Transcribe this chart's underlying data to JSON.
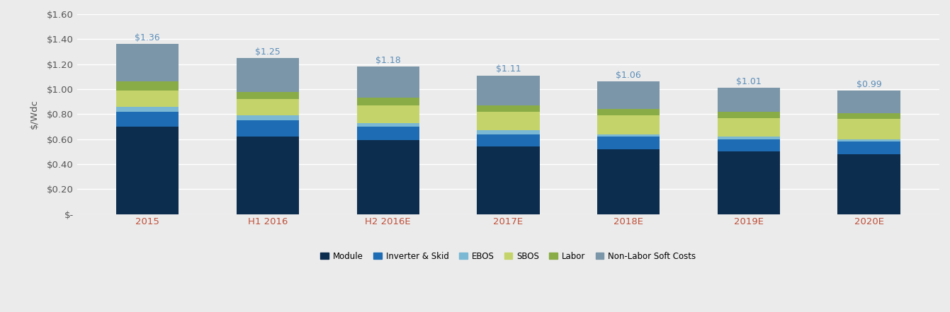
{
  "categories": [
    "2015",
    "H1 2016",
    "H2 2016E",
    "2017E",
    "2018E",
    "2019E",
    "2020E"
  ],
  "totals": [
    1.36,
    1.25,
    1.18,
    1.11,
    1.06,
    1.01,
    0.99
  ],
  "segments": {
    "Module": [
      0.7,
      0.62,
      0.59,
      0.54,
      0.52,
      0.5,
      0.48
    ],
    "Inverter & Skid": [
      0.12,
      0.13,
      0.11,
      0.1,
      0.1,
      0.1,
      0.1
    ],
    "EBOS": [
      0.04,
      0.04,
      0.03,
      0.03,
      0.02,
      0.02,
      0.02
    ],
    "SBOS": [
      0.13,
      0.13,
      0.14,
      0.15,
      0.15,
      0.15,
      0.16
    ],
    "Labor": [
      0.07,
      0.06,
      0.06,
      0.05,
      0.05,
      0.05,
      0.05
    ],
    "Non-Labor Soft Costs": [
      0.3,
      0.27,
      0.25,
      0.24,
      0.22,
      0.19,
      0.18
    ]
  },
  "colors": {
    "Module": "#0d2d4e",
    "Inverter & Skid": "#1e6db4",
    "EBOS": "#7ab8d4",
    "SBOS": "#c5d46a",
    "Labor": "#8aac47",
    "Non-Labor Soft Costs": "#7a96a8"
  },
  "ylabel": "$/Wdc",
  "ylim": [
    0,
    1.6
  ],
  "yticks": [
    0,
    0.2,
    0.4,
    0.6,
    0.8,
    1.0,
    1.2,
    1.4,
    1.6
  ],
  "ytick_labels": [
    "$-",
    "$0.20",
    "$0.40",
    "$0.60",
    "$0.80",
    "$1.00",
    "$1.20",
    "$1.40",
    "$1.60"
  ],
  "annotation_color": "#5b8db8",
  "xtick_color": "#c0503a",
  "ytick_color": "#555555",
  "background_color": "#ebebeb",
  "plot_bg_color": "#ebebeb",
  "bar_width": 0.52,
  "annotation_fontsize": 9,
  "legend_fontsize": 8.5,
  "tick_fontsize": 9.5,
  "ylabel_fontsize": 9.5,
  "grid_color": "#ffffff"
}
